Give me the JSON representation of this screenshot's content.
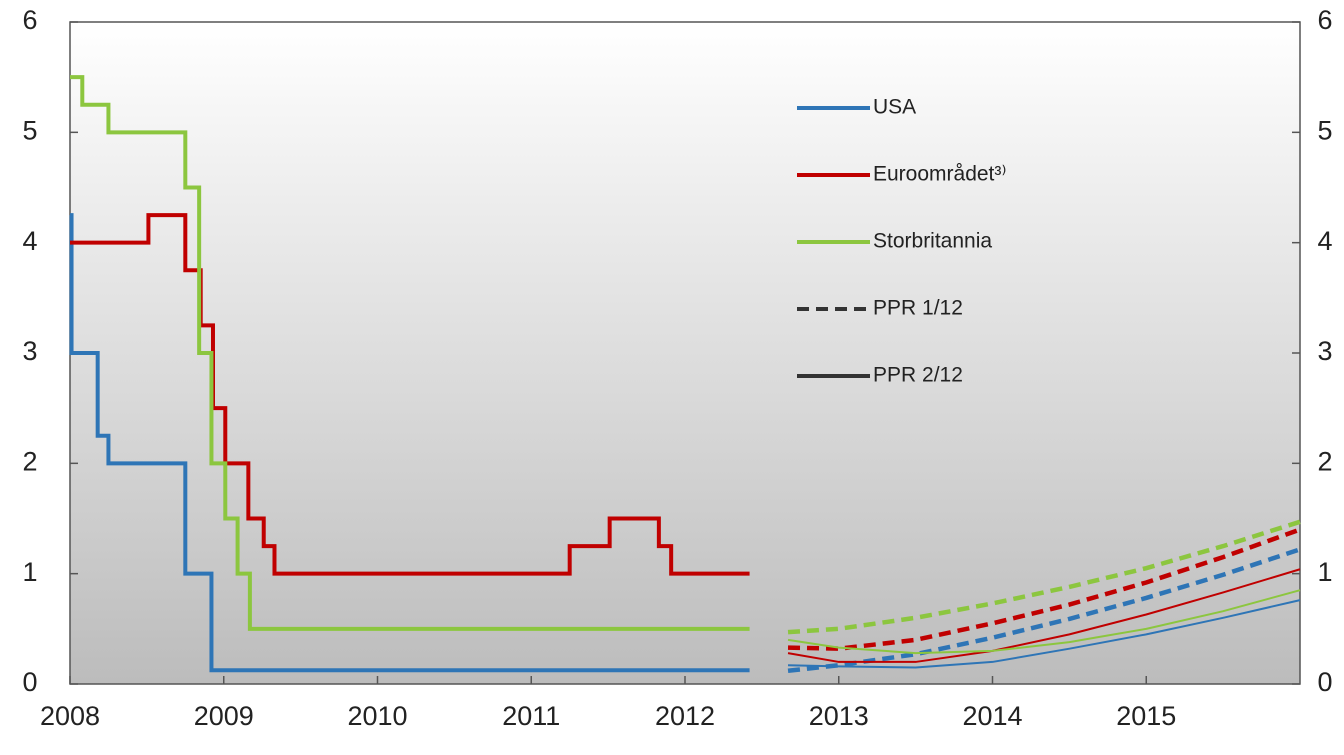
{
  "chart_data": {
    "type": "line",
    "step": true,
    "xlim": [
      2008,
      2016
    ],
    "xticks": [
      2008,
      2009,
      2010,
      2011,
      2012,
      2013,
      2014,
      2015
    ],
    "ylim": [
      0,
      6
    ],
    "yticks": [
      0,
      1,
      2,
      3,
      4,
      5,
      6
    ],
    "y2lim": [
      0,
      6
    ],
    "y2ticks": [
      0,
      1,
      2,
      3,
      4,
      5,
      6
    ],
    "series": [
      {
        "name": "USA",
        "color": "#2e75b6",
        "x": [
          2008.0,
          2008.01,
          2008.18,
          2008.25,
          2008.75,
          2008.92,
          2012.42
        ],
        "values": [
          4.25,
          3,
          2.25,
          2.0,
          1.0,
          0.125,
          0.125
        ]
      },
      {
        "name": "Euroområdet³⁾",
        "color": "#c00000",
        "x": [
          2008.0,
          2008.51,
          2008.75,
          2008.85,
          2008.93,
          2009.01,
          2009.16,
          2009.26,
          2009.33,
          2011.25,
          2011.51,
          2011.83,
          2011.91,
          2012.42
        ],
        "values": [
          4.0,
          4.25,
          3.75,
          3.25,
          2.5,
          2.0,
          1.5,
          1.25,
          1.0,
          1.25,
          1.5,
          1.25,
          1.0,
          1.0
        ]
      },
      {
        "name": "Storbritannia",
        "color": "#8cc63f",
        "x": [
          2008.0,
          2008.08,
          2008.25,
          2008.75,
          2008.84,
          2008.92,
          2009.01,
          2009.09,
          2009.17,
          2012.42
        ],
        "values": [
          5.5,
          5.25,
          5.0,
          4.5,
          3.0,
          2.0,
          1.5,
          1.0,
          0.5,
          0.5
        ]
      }
    ],
    "forecasts": [
      {
        "name": "PPR 1/12",
        "style": "dashed",
        "color": "#333333",
        "lines": [
          {
            "color": "#8cc63f",
            "x": [
              2012.67,
              2013.0,
              2013.5,
              2014.0,
              2014.5,
              2015.0,
              2015.5,
              2016.0
            ],
            "values": [
              0.47,
              0.5,
              0.6,
              0.73,
              0.88,
              1.05,
              1.25,
              1.47
            ]
          },
          {
            "color": "#c00000",
            "x": [
              2012.67,
              2013.0,
              2013.5,
              2014.0,
              2014.5,
              2015.0,
              2015.5,
              2016.0
            ],
            "values": [
              0.33,
              0.32,
              0.4,
              0.55,
              0.72,
              0.92,
              1.15,
              1.4
            ]
          },
          {
            "color": "#2e75b6",
            "x": [
              2012.67,
              2013.0,
              2013.5,
              2014.0,
              2014.5,
              2015.0,
              2015.5,
              2016.0
            ],
            "values": [
              0.12,
              0.17,
              0.27,
              0.42,
              0.59,
              0.78,
              0.99,
              1.22
            ]
          }
        ]
      },
      {
        "name": "PPR 2/12",
        "style": "solid",
        "color": "#333333",
        "lines": [
          {
            "color": "#c00000",
            "x": [
              2012.67,
              2013.0,
              2013.5,
              2014.0,
              2014.5,
              2015.0,
              2015.5,
              2016.0
            ],
            "values": [
              0.28,
              0.2,
              0.2,
              0.3,
              0.45,
              0.63,
              0.83,
              1.04
            ]
          },
          {
            "color": "#8cc63f",
            "x": [
              2012.67,
              2013.0,
              2013.5,
              2014.0,
              2014.5,
              2015.0,
              2015.5,
              2016.0
            ],
            "values": [
              0.4,
              0.33,
              0.28,
              0.3,
              0.38,
              0.5,
              0.66,
              0.85
            ]
          },
          {
            "color": "#2e75b6",
            "x": [
              2012.67,
              2013.0,
              2013.5,
              2014.0,
              2014.5,
              2015.0,
              2015.5,
              2016.0
            ],
            "values": [
              0.17,
              0.16,
              0.15,
              0.2,
              0.32,
              0.45,
              0.6,
              0.76
            ]
          }
        ]
      }
    ]
  }
}
